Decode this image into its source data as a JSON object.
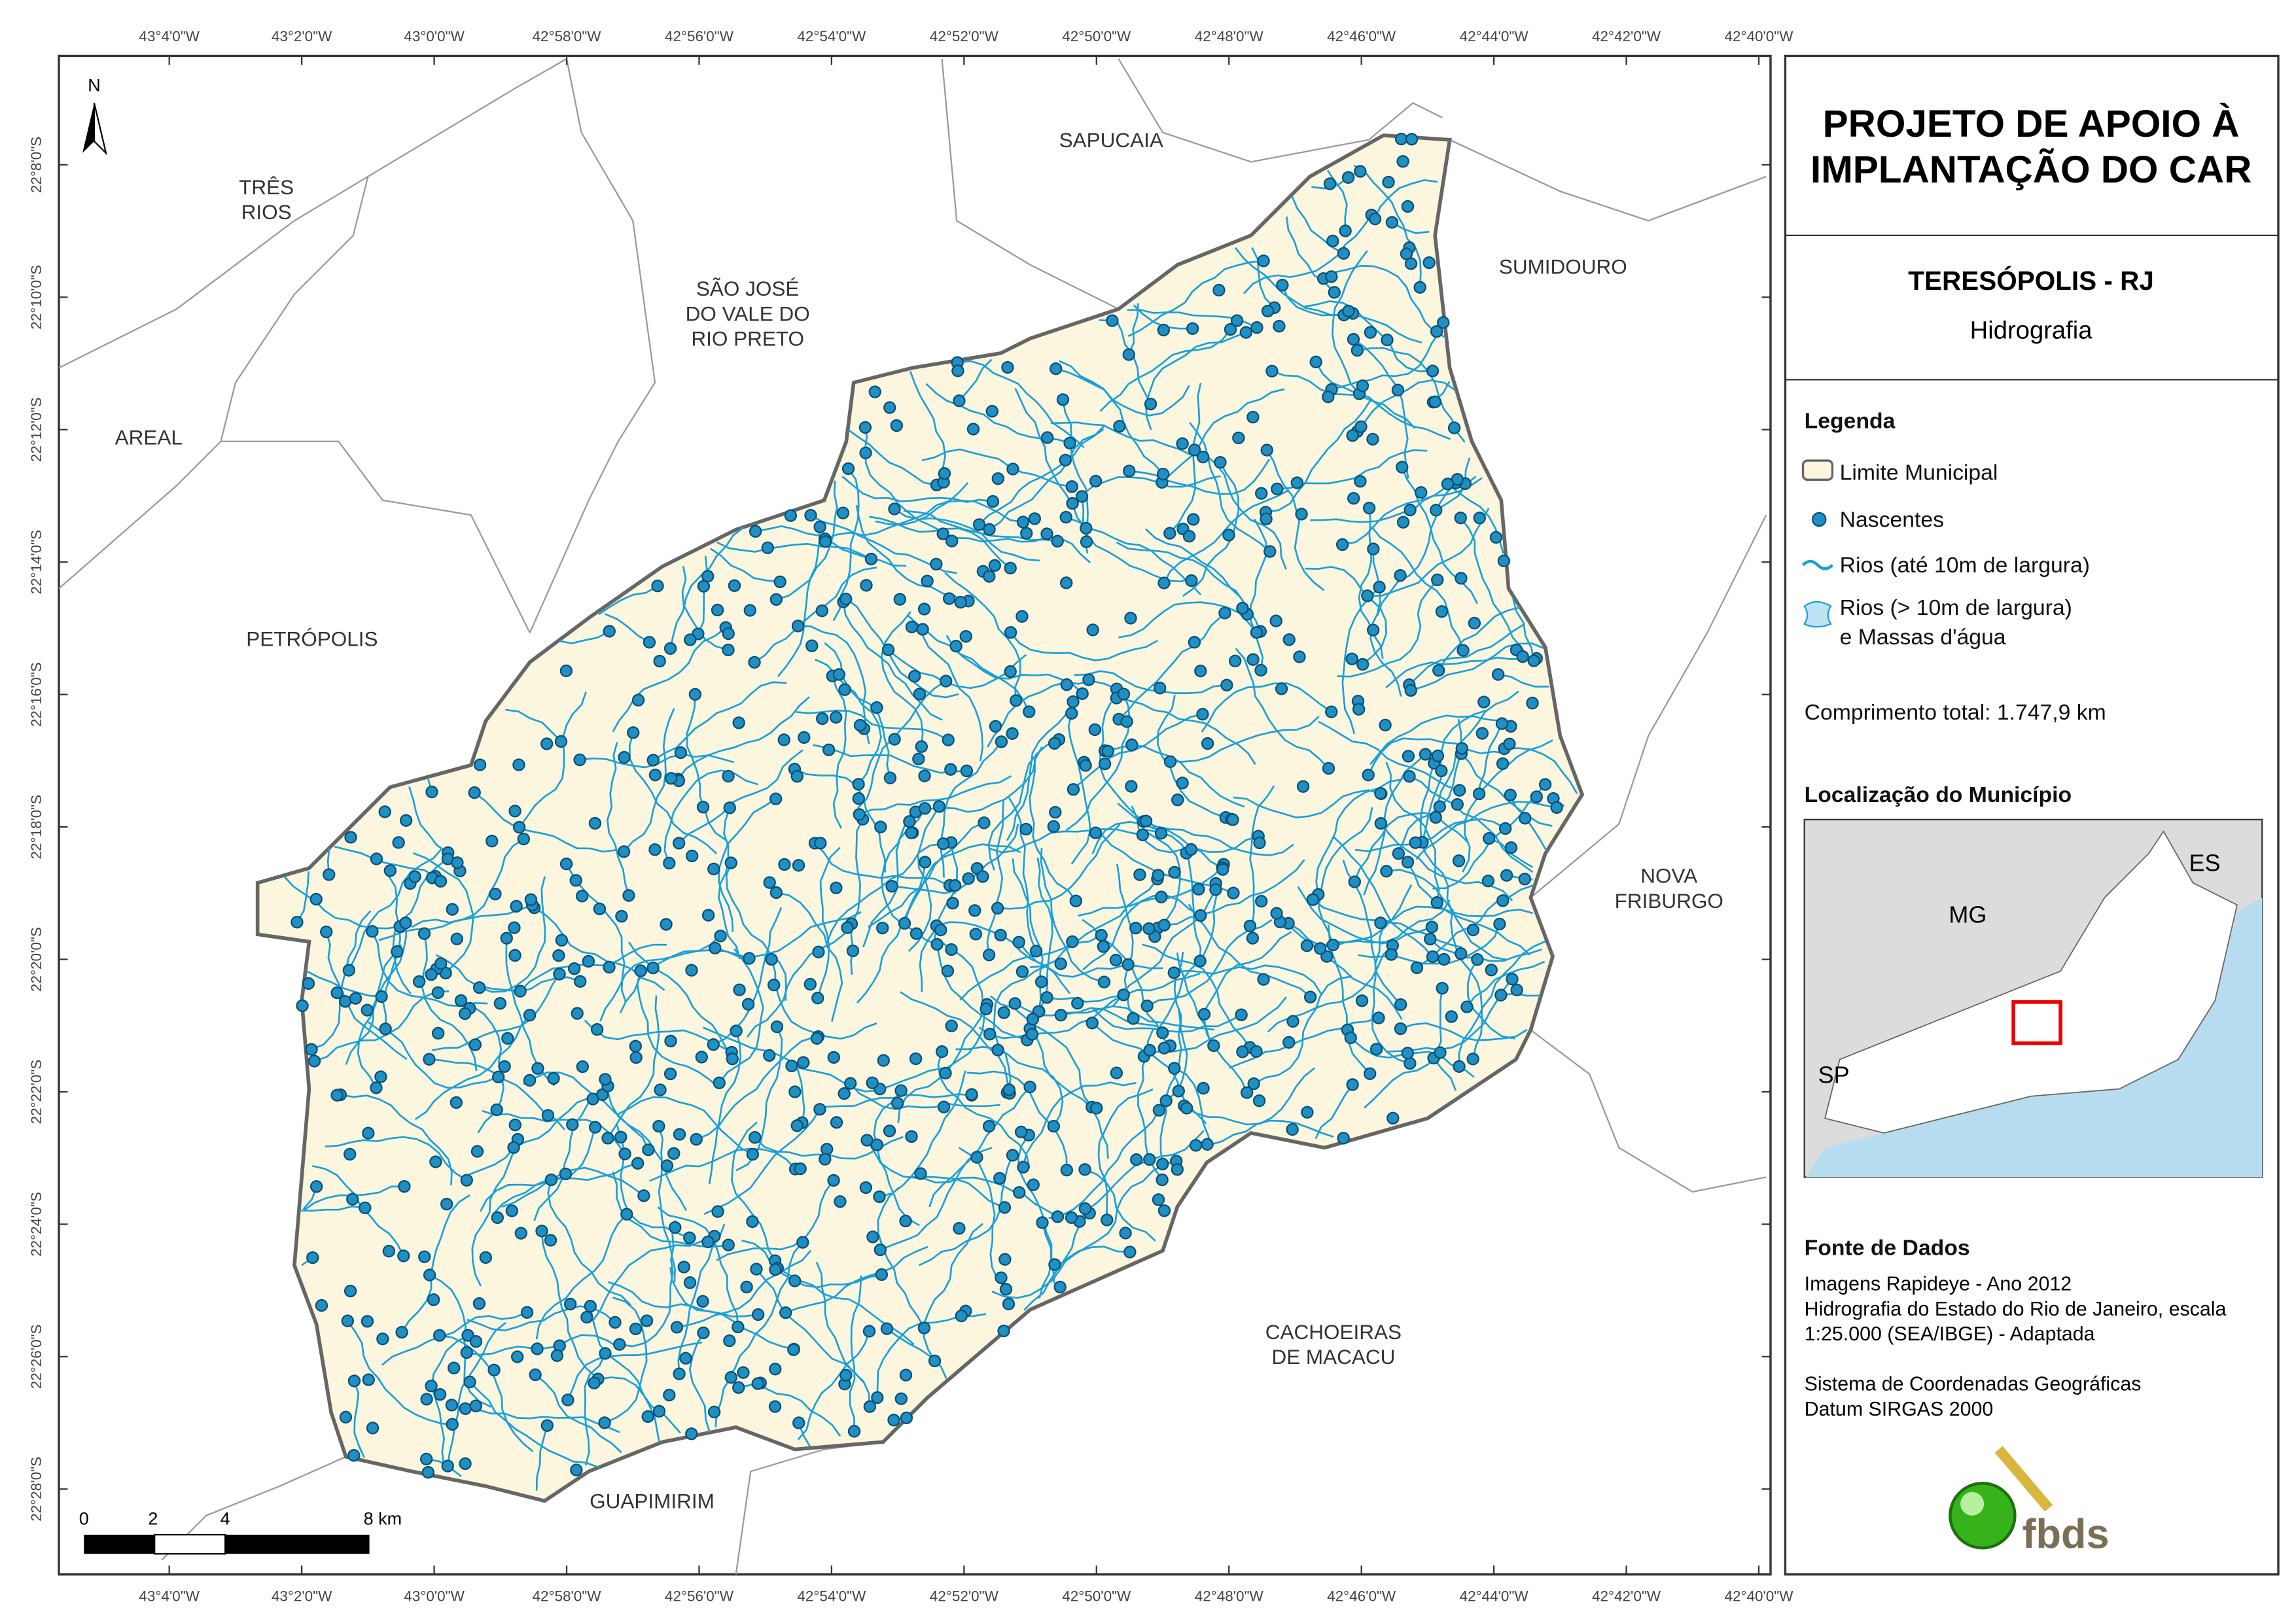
{
  "header": {
    "title_lines": [
      "PROJETO DE APOIO À",
      "IMPLANTAÇÃO DO CAR"
    ],
    "municipality": "TERESÓPOLIS - RJ",
    "theme": "Hidrografia"
  },
  "coordinates": {
    "longitudes": [
      "43°4'0\"W",
      "43°2'0\"W",
      "43°0'0\"W",
      "42°58'0\"W",
      "42°56'0\"W",
      "42°54'0\"W",
      "42°52'0\"W",
      "42°50'0\"W",
      "42°48'0\"W",
      "42°46'0\"W",
      "42°44'0\"W",
      "42°42'0\"W",
      "42°40'0\"W"
    ],
    "latitudes": [
      "22°8'0\"S",
      "22°10'0\"S",
      "22°12'0\"S",
      "22°14'0\"S",
      "22°16'0\"S",
      "22°18'0\"S",
      "22°20'0\"S",
      "22°22'0\"S",
      "22°24'0\"S",
      "22°26'0\"S",
      "22°28'0\"S"
    ]
  },
  "places": [
    {
      "lines": [
        "TRÊS",
        "RIOS"
      ]
    },
    {
      "lines": [
        "SÃO JOSÉ",
        "DO VALE DO",
        "RIO PRETO"
      ]
    },
    {
      "lines": [
        "SAPUCAIA"
      ]
    },
    {
      "lines": [
        "SUMIDOURO"
      ]
    },
    {
      "lines": [
        "AREAL"
      ]
    },
    {
      "lines": [
        "PETRÓPOLIS"
      ]
    },
    {
      "lines": [
        "NOVA",
        "FRIBURGO"
      ]
    },
    {
      "lines": [
        "CACHOEIRAS",
        "DE MACACU"
      ]
    },
    {
      "lines": [
        "GUAPIMIRIM"
      ]
    }
  ],
  "north": "N",
  "scale_bar": [
    "0",
    "2",
    "4",
    "8 km"
  ],
  "legend": {
    "title": "Legenda",
    "items": [
      [
        "Limite Municipal"
      ],
      [
        "Nascentes"
      ],
      [
        "Rios (até 10m de largura)"
      ],
      [
        "Rios (> 10m de largura)",
        "e Massas d'água"
      ]
    ],
    "total": "Comprimento total:  1.747,9 km"
  },
  "location": {
    "title": "Localização do Município",
    "labels": [
      "MG",
      "ES",
      "SP"
    ]
  },
  "sources": {
    "title": "Fonte de Dados",
    "lines": [
      "Imagens Rapideye - Ano 2012",
      "Hidrografia do Estado do Rio de Janeiro, escala",
      "1:25.000 (SEA/IBGE) - Adaptada",
      "",
      "Sistema de Coordenadas Geográficas",
      "Datum SIRGAS 2000"
    ]
  },
  "logo": "fbds"
}
